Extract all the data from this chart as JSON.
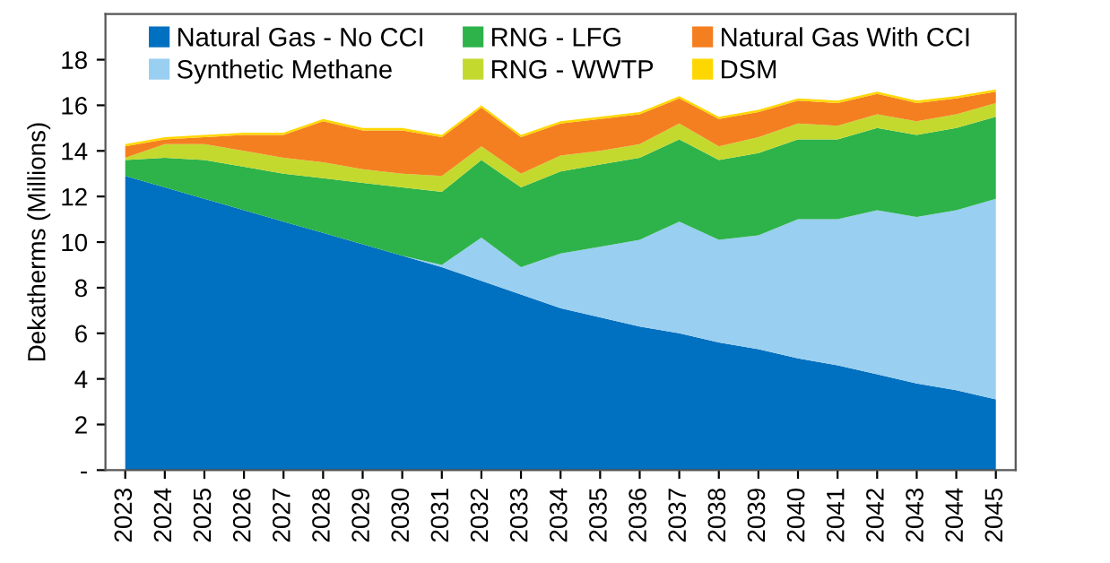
{
  "chart_data": {
    "type": "area",
    "stacked": true,
    "ylabel": "Dekatherms (Millions)",
    "categories": [
      "2023",
      "2024",
      "2025",
      "2026",
      "2027",
      "2028",
      "2029",
      "2030",
      "2031",
      "2032",
      "2033",
      "2034",
      "2035",
      "2036",
      "2037",
      "2038",
      "2039",
      "2040",
      "2041",
      "2042",
      "2043",
      "2044",
      "2045"
    ],
    "series": [
      {
        "name": "Natural Gas - No CCI",
        "color": "#0070c0",
        "values": [
          12.9,
          12.4,
          11.9,
          11.4,
          10.9,
          10.4,
          9.9,
          9.4,
          8.9,
          8.3,
          7.7,
          7.1,
          6.7,
          6.3,
          6.0,
          5.6,
          5.3,
          4.9,
          4.6,
          4.2,
          3.8,
          3.5,
          3.1
        ]
      },
      {
        "name": "Synthetic Methane",
        "color": "#99cff0",
        "values": [
          0,
          0,
          0,
          0,
          0,
          0,
          0,
          0,
          0.1,
          1.9,
          1.2,
          2.4,
          3.1,
          3.8,
          4.9,
          4.5,
          5.0,
          6.1,
          6.4,
          7.2,
          7.3,
          7.9,
          8.8
        ]
      },
      {
        "name": "RNG - LFG",
        "color": "#2db34a",
        "values": [
          0.7,
          1.3,
          1.7,
          1.9,
          2.1,
          2.4,
          2.7,
          3.0,
          3.2,
          3.4,
          3.5,
          3.6,
          3.6,
          3.6,
          3.6,
          3.5,
          3.6,
          3.5,
          3.5,
          3.6,
          3.6,
          3.6,
          3.6
        ]
      },
      {
        "name": "RNG - WWTP",
        "color": "#c4d92e",
        "values": [
          0.1,
          0.6,
          0.7,
          0.7,
          0.7,
          0.7,
          0.6,
          0.6,
          0.7,
          0.6,
          0.6,
          0.7,
          0.6,
          0.6,
          0.7,
          0.6,
          0.7,
          0.7,
          0.6,
          0.6,
          0.6,
          0.6,
          0.6
        ]
      },
      {
        "name": "Natural Gas With CCI",
        "color": "#f47f20",
        "values": [
          0.5,
          0.2,
          0.3,
          0.7,
          1.0,
          1.8,
          1.7,
          1.9,
          1.7,
          1.7,
          1.6,
          1.4,
          1.4,
          1.3,
          1.1,
          1.2,
          1.1,
          1.0,
          1.0,
          0.9,
          0.8,
          0.7,
          0.5
        ]
      },
      {
        "name": "DSM",
        "color": "#ffd700",
        "values": [
          0.1,
          0.1,
          0.1,
          0.1,
          0.1,
          0.1,
          0.1,
          0.1,
          0.1,
          0.1,
          0.1,
          0.1,
          0.1,
          0.1,
          0.1,
          0.1,
          0.1,
          0.1,
          0.1,
          0.1,
          0.1,
          0.1,
          0.1
        ]
      }
    ],
    "ylim": [
      0,
      20
    ],
    "yticks": [
      {
        "value": 0,
        "label": "-"
      },
      2,
      4,
      6,
      8,
      10,
      12,
      14,
      16,
      18
    ],
    "grid": false,
    "legend": "top"
  }
}
